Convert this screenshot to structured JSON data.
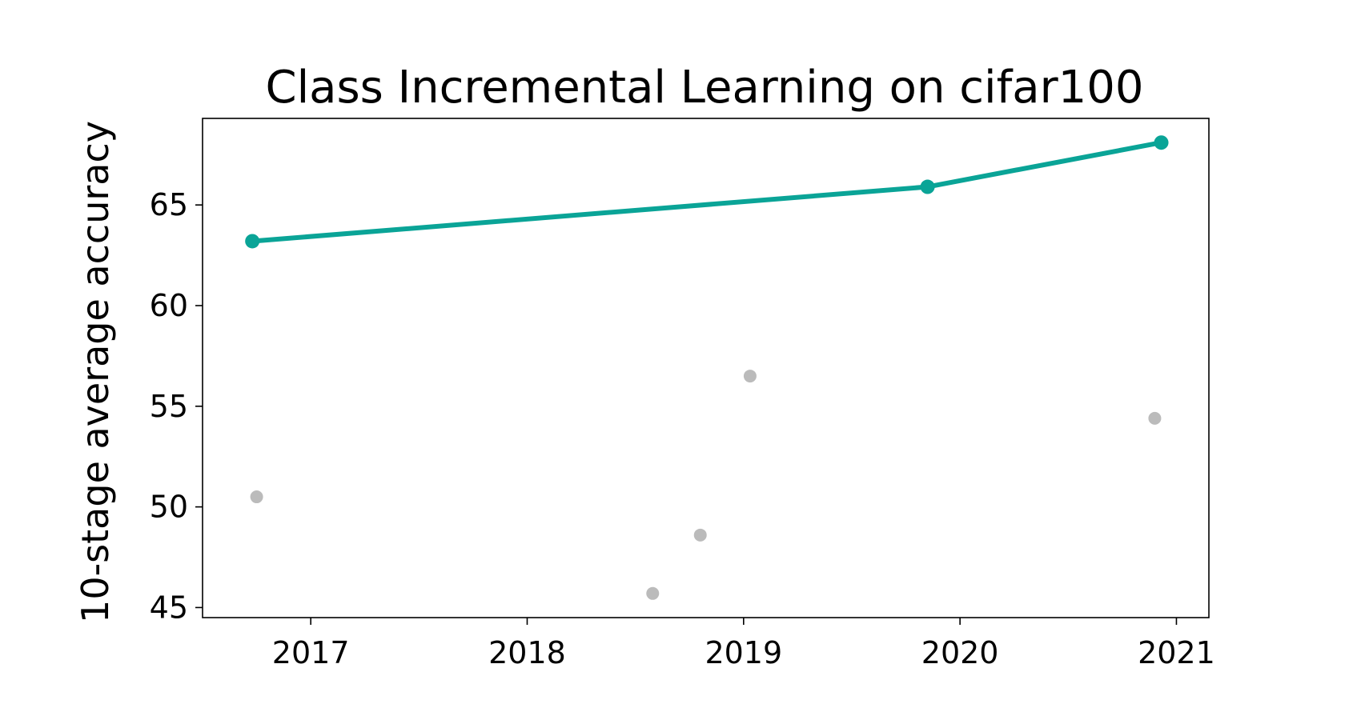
{
  "chart_data": {
    "type": "scatter",
    "title": "Class Incremental Learning on cifar100",
    "xlabel": "",
    "ylabel": "10-stage average accuracy",
    "xlim": [
      2016.5,
      2021.15
    ],
    "ylim": [
      44.5,
      69.3
    ],
    "x_ticks": [
      {
        "value": 2017,
        "label": "2017"
      },
      {
        "value": 2018,
        "label": "2018"
      },
      {
        "value": 2019,
        "label": "2019"
      },
      {
        "value": 2020,
        "label": "2020"
      },
      {
        "value": 2021,
        "label": "2021"
      }
    ],
    "y_ticks": [
      {
        "value": 45,
        "label": "45"
      },
      {
        "value": 50,
        "label": "50"
      },
      {
        "value": 55,
        "label": "55"
      },
      {
        "value": 60,
        "label": "60"
      },
      {
        "value": 65,
        "label": "65"
      }
    ],
    "grid": false,
    "series": [
      {
        "role": "state-of-the-art frontier",
        "style": "line-with-markers",
        "color": "#0aa497",
        "points": [
          {
            "x": 2016.73,
            "y": 63.2
          },
          {
            "x": 2019.85,
            "y": 65.9
          },
          {
            "x": 2020.93,
            "y": 68.1
          }
        ]
      },
      {
        "role": "other methods",
        "style": "markers",
        "color": "#bbbbbb",
        "points": [
          {
            "x": 2016.75,
            "y": 50.5
          },
          {
            "x": 2018.58,
            "y": 45.7
          },
          {
            "x": 2018.8,
            "y": 48.6
          },
          {
            "x": 2019.03,
            "y": 56.5
          },
          {
            "x": 2020.9,
            "y": 54.4
          }
        ]
      }
    ]
  }
}
